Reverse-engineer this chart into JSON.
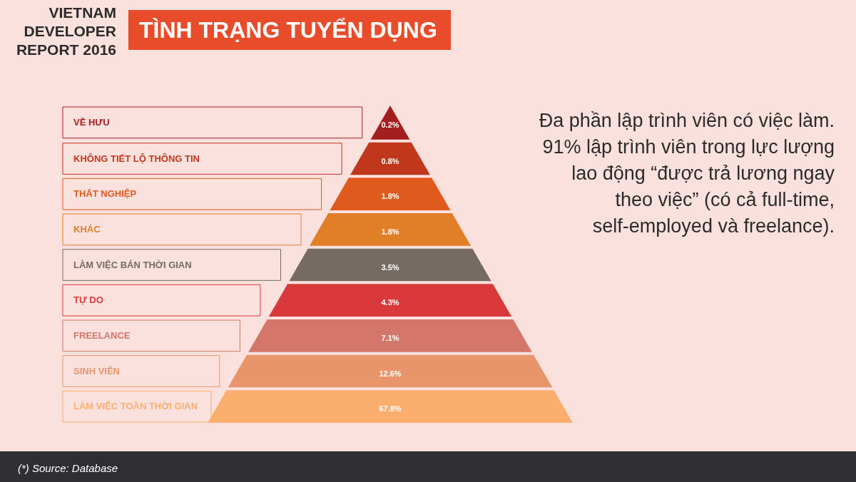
{
  "chart_data": {
    "type": "other",
    "title": "TÌNH TRẠNG TUYỂN DỤNG",
    "subtitle": "VIETNAM DEVELOPER REPORT 2016",
    "categories": [
      "VỀ HƯU",
      "KHÔNG TIẾT LỘ THÔNG TIN",
      "THẤT NGHIỆP",
      "KHÁC",
      "LÀM VIỆC BÁN THỜI GIAN",
      "TỰ DO",
      "FREELANCE",
      "SINH VIÊN",
      "LÀM VIỆC TOÀN THỜI GIAN"
    ],
    "values": [
      0.2,
      0.8,
      1.8,
      1.8,
      3.5,
      4.3,
      7.1,
      12.6,
      67.8
    ],
    "value_labels": [
      "0.2%",
      "0.8%",
      "1.8%",
      "1.8%",
      "3.5%",
      "4.3%",
      "7.1%",
      "12.6%",
      "67.8%"
    ],
    "colors": [
      "#a31e1e",
      "#c0371c",
      "#e05a1e",
      "#e07f28",
      "#756b62",
      "#d9393a",
      "#d4776a",
      "#e8956b",
      "#fbae6e"
    ],
    "annotations": [
      "Đa phần lập trình viên có việc làm.",
      "91% lập trình viên trong lực lượng",
      "lao động “được trả lương ngay",
      "theo việc” (có cả full-time,",
      "self-employed và freelance).",
      "(*) Source: Database"
    ]
  }
}
